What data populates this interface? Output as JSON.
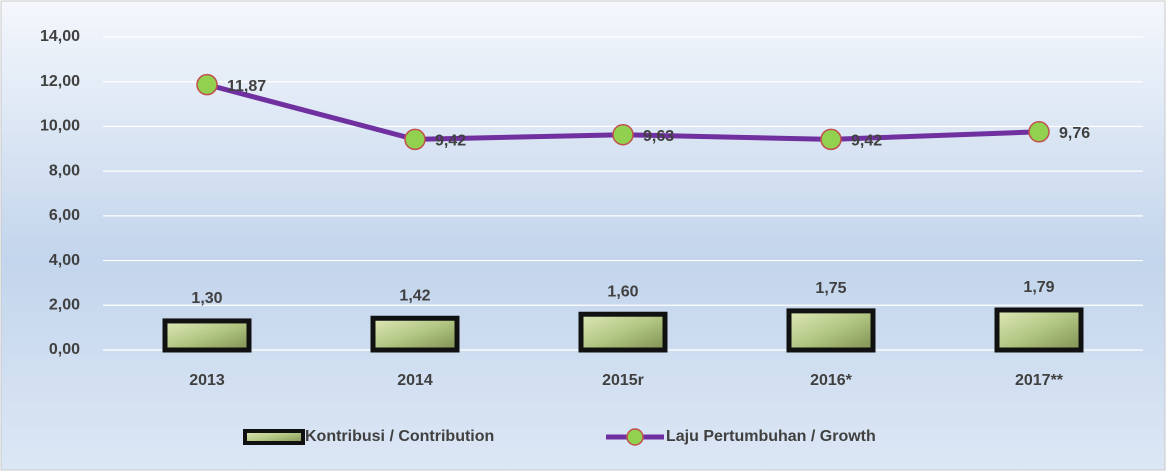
{
  "chart_data": {
    "type": "combo",
    "categories": [
      "2013",
      "2014",
      "2015r",
      "2016*",
      "2017**"
    ],
    "series": [
      {
        "name": "Kontribusi / Contribution",
        "type": "bar",
        "color": "#9fb36a",
        "values": [
          1.3,
          1.42,
          1.6,
          1.75,
          1.79
        ],
        "value_labels": [
          "1,30",
          "1,42",
          "1,60",
          "1,75",
          "1,79"
        ]
      },
      {
        "name": "Laju Pertumbuhan / Growth",
        "type": "line",
        "color": "#7030a0",
        "values": [
          11.87,
          9.42,
          9.63,
          9.42,
          9.76
        ],
        "value_labels": [
          "11,87",
          "9,42",
          "9,63",
          "9,42",
          "9,76"
        ]
      }
    ],
    "ylim": [
      0,
      14
    ],
    "yticks": [
      {
        "value": 0,
        "label": "0,00"
      },
      {
        "value": 2,
        "label": "2,00"
      },
      {
        "value": 4,
        "label": "4,00"
      },
      {
        "value": 6,
        "label": "6,00"
      },
      {
        "value": 8,
        "label": "8,00"
      },
      {
        "value": 10,
        "label": "10,00"
      },
      {
        "value": 12,
        "label": "12,00"
      },
      {
        "value": 14,
        "label": "14,00"
      }
    ],
    "grid": true,
    "legend": "bottom"
  }
}
